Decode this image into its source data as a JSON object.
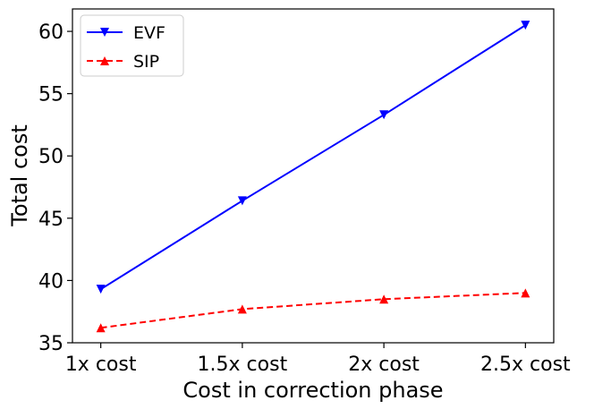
{
  "chart_data": {
    "type": "line",
    "title": "",
    "xlabel": "Cost in correction phase",
    "ylabel": "Total cost",
    "categories": [
      "1x cost",
      "1.5x cost",
      "2x cost",
      "2.5x  cost"
    ],
    "x": [
      1,
      1.5,
      2,
      2.5
    ],
    "ylim": [
      35,
      61.8
    ],
    "yticks": [
      35,
      40,
      45,
      50,
      55,
      60
    ],
    "grid": false,
    "legend_position": "top-left",
    "series": [
      {
        "name": "EVF",
        "values": [
          39.3,
          46.4,
          53.3,
          60.5
        ],
        "color": "#0000ff",
        "line_style": "solid",
        "marker": "triangle-down"
      },
      {
        "name": "SIP",
        "values": [
          36.2,
          37.7,
          38.5,
          39.0
        ],
        "color": "#ff0000",
        "line_style": "dashed",
        "marker": "triangle-up"
      }
    ]
  }
}
